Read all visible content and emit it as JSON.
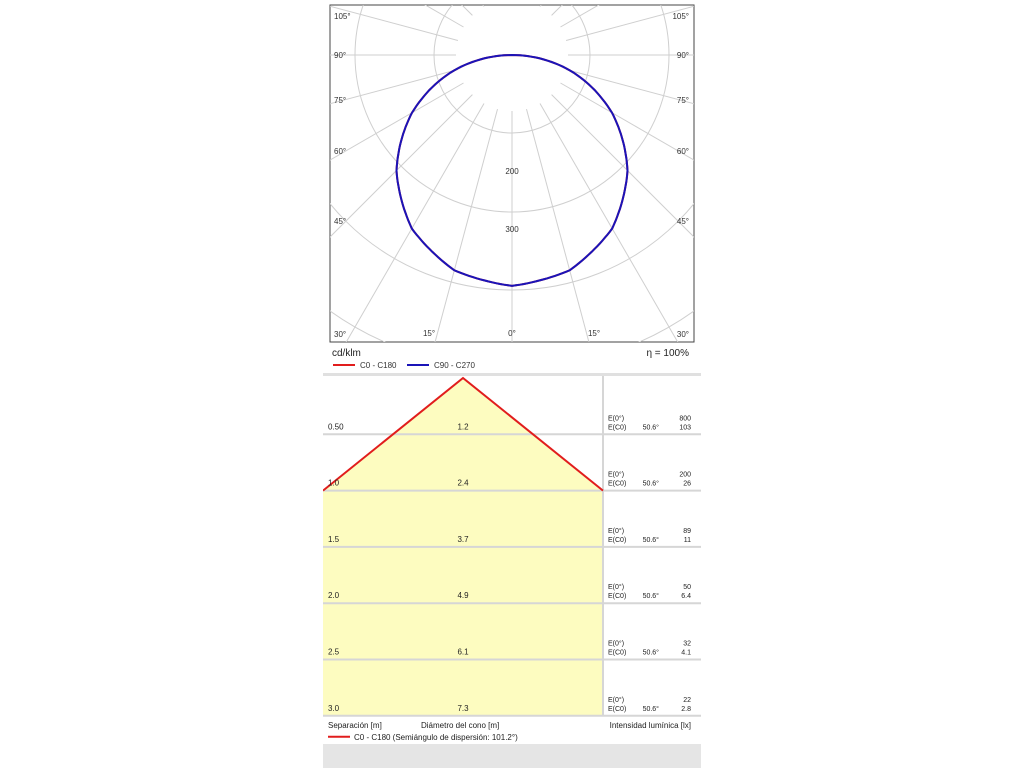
{
  "polar": {
    "unit": "cd/klm",
    "efficiency": "η = 100%",
    "angle_labels_left": [
      "105°",
      "90°",
      "75°",
      "60°",
      "45°",
      "30°",
      "15°",
      "0°"
    ],
    "angle_labels_right": [
      "105°",
      "90°",
      "75°",
      "60°",
      "45°",
      "30°",
      "15°"
    ],
    "radial_labels": [
      "200",
      "300"
    ],
    "legend": [
      {
        "label": "C0 - C180",
        "color": "#e11d1d"
      },
      {
        "label": "C90 - C270",
        "color": "#1a14b8"
      }
    ]
  },
  "cone": {
    "footer_left": "Separación [m]",
    "footer_mid": "Diámetro del cono [m]",
    "footer_right": "Intensidad lumínica [lx]",
    "legend_label": "C0 - C180 (Semiángulo de dispersión: 101.2°)",
    "legend_color": "#e11d1d",
    "fill_color": "#fdfcc0",
    "rows": [
      {
        "distance": "0.50",
        "diameter": "1.2",
        "e0_label": "E(0°)",
        "e0": "800",
        "ec_label": "E(C0)",
        "angle": "50.6°",
        "ec": "103"
      },
      {
        "distance": "1.0",
        "diameter": "2.4",
        "e0_label": "E(0°)",
        "e0": "200",
        "ec_label": "E(C0)",
        "angle": "50.6°",
        "ec": "26"
      },
      {
        "distance": "1.5",
        "diameter": "3.7",
        "e0_label": "E(0°)",
        "e0": "89",
        "ec_label": "E(C0)",
        "angle": "50.6°",
        "ec": "11"
      },
      {
        "distance": "2.0",
        "diameter": "4.9",
        "e0_label": "E(0°)",
        "e0": "50",
        "ec_label": "E(C0)",
        "angle": "50.6°",
        "ec": "6.4"
      },
      {
        "distance": "2.5",
        "diameter": "6.1",
        "e0_label": "E(0°)",
        "e0": "32",
        "ec_label": "E(C0)",
        "angle": "50.6°",
        "ec": "4.1"
      },
      {
        "distance": "3.0",
        "diameter": "7.3",
        "e0_label": "E(0°)",
        "e0": "22",
        "ec_label": "E(C0)",
        "angle": "50.6°",
        "ec": "2.8"
      }
    ]
  },
  "chart_data": [
    {
      "type": "polar-line",
      "unit": "cd/klm",
      "angle_range_deg": [
        0,
        105
      ],
      "radial_ticks": [
        200,
        300
      ],
      "series": [
        {
          "name": "C90 - C270",
          "color": "#1a14b8",
          "angles_deg": [
            0,
            15,
            30,
            45,
            60,
            75,
            90
          ],
          "values": [
            318,
            307,
            276,
            225,
            159,
            83,
            0
          ]
        },
        {
          "name": "C0 - C180",
          "color": "#e11d1d",
          "angles_deg": [
            0,
            15,
            30,
            45,
            60,
            75,
            90
          ],
          "values": [
            318,
            307,
            276,
            225,
            159,
            83,
            0
          ]
        }
      ]
    },
    {
      "type": "table",
      "columns": [
        "Separación [m]",
        "Diámetro del cono [m]",
        "E(0°)",
        "E(C0)"
      ],
      "rows": [
        [
          0.5,
          1.2,
          800,
          103
        ],
        [
          1.0,
          2.4,
          200,
          26
        ],
        [
          1.5,
          3.7,
          89,
          11
        ],
        [
          2.0,
          4.9,
          50,
          6.4
        ],
        [
          2.5,
          6.1,
          32,
          4.1
        ],
        [
          3.0,
          7.3,
          22,
          2.8
        ]
      ],
      "half_angle_deg": 101.2
    }
  ]
}
